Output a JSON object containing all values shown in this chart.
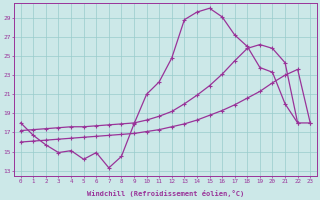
{
  "xlabel": "Windchill (Refroidissement éolien,°C)",
  "background_color": "#cce8e8",
  "grid_color": "#99cccc",
  "line_color": "#993399",
  "xlim": [
    -0.5,
    23.5
  ],
  "ylim": [
    12.5,
    30.5
  ],
  "xticks": [
    0,
    1,
    2,
    3,
    4,
    5,
    6,
    7,
    8,
    9,
    10,
    11,
    12,
    13,
    14,
    15,
    16,
    17,
    18,
    19,
    20,
    21,
    22,
    23
  ],
  "yticks": [
    13,
    15,
    17,
    19,
    21,
    23,
    25,
    27,
    29
  ],
  "line1_x": [
    0,
    1,
    2,
    3,
    4,
    5,
    6,
    7,
    8,
    9,
    10,
    11,
    12,
    13,
    14,
    15,
    16,
    17,
    18,
    19,
    20,
    21,
    22
  ],
  "line1_y": [
    18.0,
    16.7,
    15.7,
    14.9,
    15.1,
    14.2,
    14.9,
    13.3,
    14.5,
    17.9,
    21.0,
    22.3,
    24.8,
    28.8,
    29.6,
    30.0,
    29.1,
    27.2,
    26.0,
    23.8,
    23.3,
    20.0,
    18.0
  ],
  "line2_x": [
    0,
    1,
    2,
    3,
    4,
    5,
    6,
    7,
    8,
    9,
    10,
    11,
    12,
    13,
    14,
    15,
    16,
    17,
    18,
    19,
    20,
    21,
    22,
    23
  ],
  "line2_y": [
    17.2,
    17.3,
    17.4,
    17.5,
    17.6,
    17.6,
    17.7,
    17.8,
    17.9,
    18.0,
    18.3,
    18.7,
    19.2,
    20.0,
    20.9,
    21.9,
    23.1,
    24.5,
    25.8,
    26.2,
    25.8,
    24.3,
    18.0,
    18.0
  ],
  "line3_x": [
    0,
    1,
    2,
    3,
    4,
    5,
    6,
    7,
    8,
    9,
    10,
    11,
    12,
    13,
    14,
    15,
    16,
    17,
    18,
    19,
    20,
    21,
    22,
    23
  ],
  "line3_y": [
    16.0,
    16.1,
    16.2,
    16.3,
    16.4,
    16.5,
    16.6,
    16.7,
    16.8,
    16.9,
    17.1,
    17.3,
    17.6,
    17.9,
    18.3,
    18.8,
    19.3,
    19.9,
    20.6,
    21.3,
    22.2,
    23.0,
    23.6,
    18.0
  ]
}
